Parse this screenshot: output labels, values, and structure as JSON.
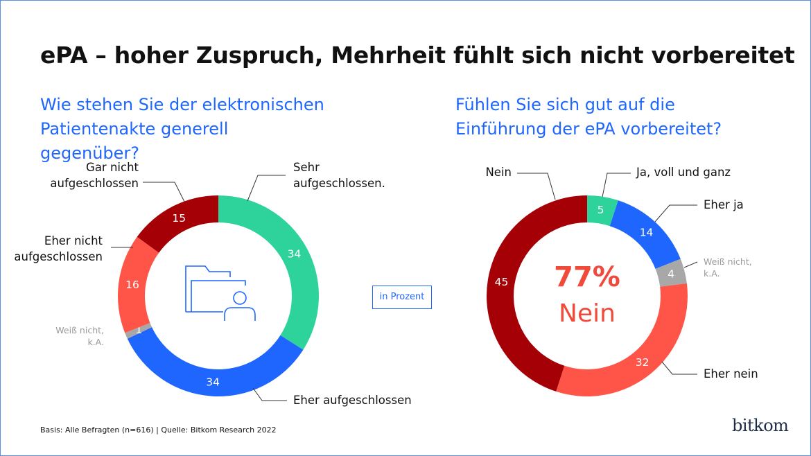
{
  "title": "ePA – hoher Zuspruch, Mehrheit fühlt sich nicht vorbereitet",
  "unit_label": "in Prozent",
  "note": "Basis: Alle Befragten (n=616) | Quelle: Bitkom Research 2022",
  "logo": "bitkom",
  "chart_data": [
    {
      "type": "donut",
      "title": "Wie stehen Sie der elektronischen Patientenakte generell gegenüber?",
      "categories": [
        "Sehr aufgeschlossen.",
        "Eher aufgeschlossen",
        "Weiß nicht, k.A.",
        "Eher nicht aufgeschlossen",
        "Gar nicht aufgeschlossen"
      ],
      "values": [
        34,
        34,
        1,
        16,
        15
      ],
      "colors": [
        "#2ed39b",
        "#1f66ff",
        "#a8a8a8",
        "#ff5548",
        "#a50005"
      ]
    },
    {
      "type": "donut",
      "title": "Fühlen Sie sich gut auf die Einführung der ePA vorbereitet?",
      "categories": [
        "Ja, voll und ganz",
        "Eher ja",
        "Weiß nicht, k.A.",
        "Eher nein",
        "Nein"
      ],
      "values": [
        5,
        14,
        4,
        32,
        45
      ],
      "colors": [
        "#2ed39b",
        "#1f66ff",
        "#a8a8a8",
        "#ff5548",
        "#a50005"
      ],
      "center_value": {
        "value": 77,
        "label": "77%"
      },
      "center_text": "Nein"
    }
  ]
}
